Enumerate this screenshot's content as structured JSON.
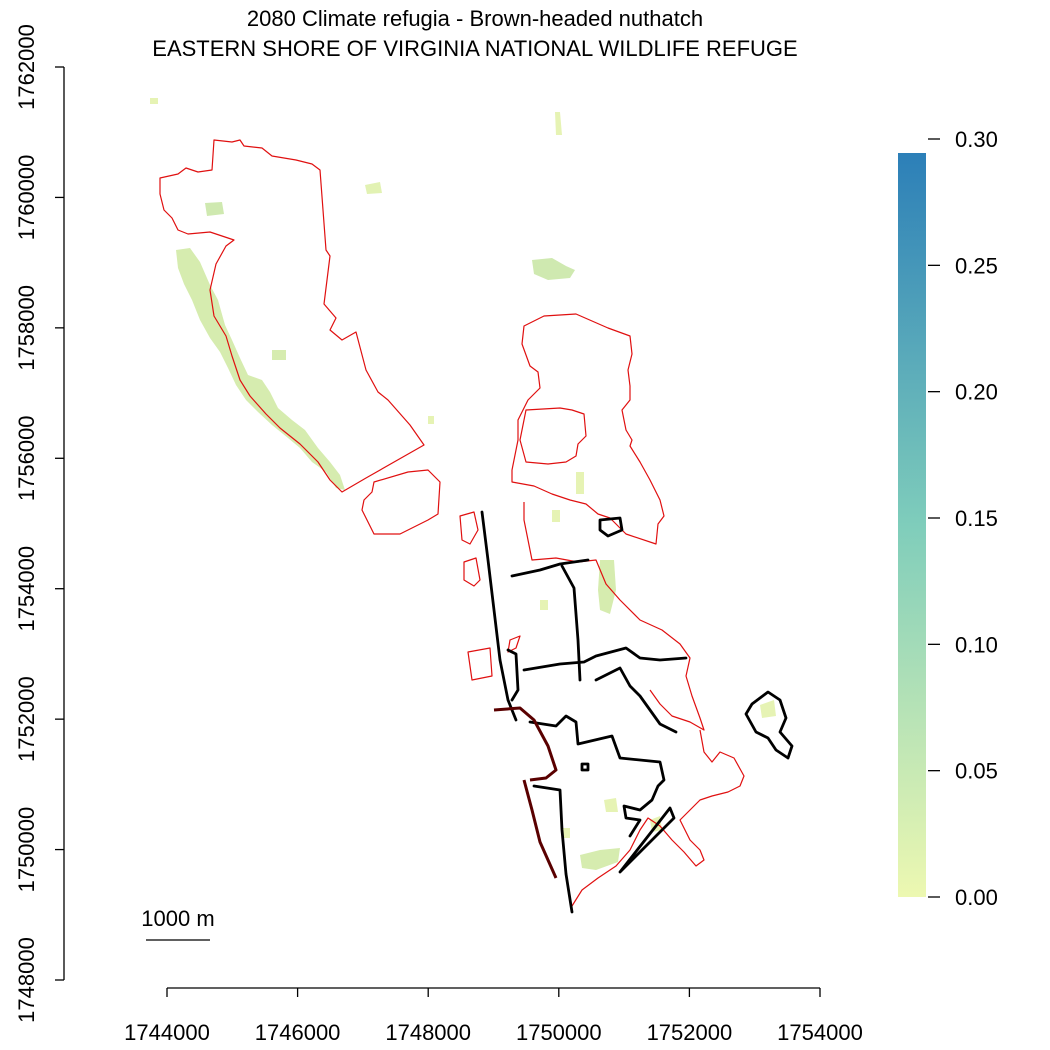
{
  "title": {
    "line1": "2080 Climate refugia - Brown-headed nuthatch",
    "line2": "EASTERN SHORE OF VIRGINIA NATIONAL WILDLIFE REFUGE"
  },
  "x_axis": {
    "ticks": [
      "1744000",
      "1746000",
      "1748000",
      "1750000",
      "1752000",
      "1754000"
    ],
    "range": [
      1744000,
      1754000
    ]
  },
  "y_axis": {
    "ticks": [
      "1748000",
      "1750000",
      "1752000",
      "1754000",
      "1756000",
      "1758000",
      "1760000",
      "1762000"
    ],
    "range": [
      1748000,
      1762000
    ]
  },
  "legend": {
    "ticks": [
      "0.00",
      "0.05",
      "0.10",
      "0.15",
      "0.20",
      "0.25",
      "0.30"
    ],
    "range": [
      0.0,
      0.3
    ],
    "color_low": "#edf8b1",
    "color_mid": "#7fcdbb",
    "color_high": "#2c7fb8",
    "placement": "right"
  },
  "scale_bar": {
    "label": "1000 m"
  },
  "colors": {
    "refuge_boundary": "#e01010",
    "roads": "#000000",
    "habitat_light": "#e6f3b4",
    "habitat_mid": "#cfe9b0"
  }
}
